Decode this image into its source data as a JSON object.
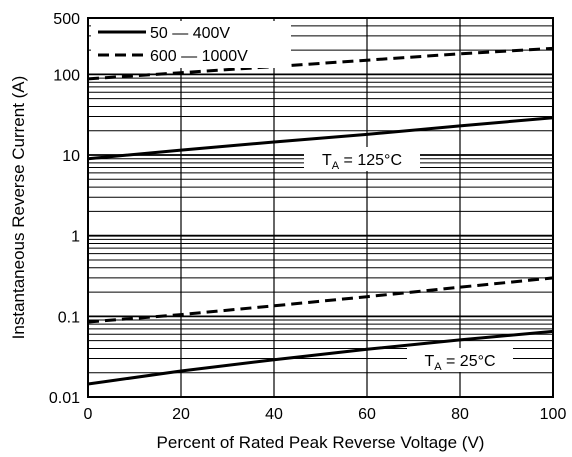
{
  "chart_data": {
    "type": "line",
    "title": "",
    "xlabel": "Percent of Rated Peak Reverse Voltage (V)",
    "ylabel": "Instantaneous Reverse Current (A)",
    "xlim": [
      0,
      100
    ],
    "ylim": [
      0.01,
      500
    ],
    "y_scale": "log",
    "grid": true,
    "legend_position": "top-left",
    "x_ticks": [
      "0",
      "20",
      "40",
      "60",
      "80",
      "100"
    ],
    "y_ticks": [
      "0.01",
      "0.1",
      "1",
      "10",
      "100",
      "500"
    ],
    "legend": [
      {
        "label": "50 — 400V",
        "style": "solid"
      },
      {
        "label": "600 — 1000V",
        "style": "dashed"
      }
    ],
    "annotations": [
      {
        "main": "T",
        "sub": "A",
        "rest": " = 125°C",
        "near": "upper curves"
      },
      {
        "main": "T",
        "sub": "A",
        "rest": " = 25°C",
        "near": "lower curves"
      }
    ],
    "series": [
      {
        "name": "50 — 400V",
        "style": "solid",
        "condition": "TA = 125°C",
        "x": [
          0,
          20,
          40,
          60,
          80,
          100
        ],
        "y": [
          9,
          11.5,
          14.5,
          18,
          23,
          29
        ]
      },
      {
        "name": "600 — 1000V",
        "style": "dashed",
        "condition": "TA = 125°C",
        "x": [
          0,
          20,
          40,
          60,
          80,
          100
        ],
        "y": [
          88,
          105,
          125,
          150,
          180,
          210
        ]
      },
      {
        "name": "600 — 1000V",
        "style": "dashed",
        "condition": "TA = 25°C",
        "x": [
          0,
          20,
          40,
          60,
          80,
          100
        ],
        "y": [
          0.085,
          0.105,
          0.135,
          0.175,
          0.23,
          0.3
        ]
      },
      {
        "name": "50 — 400V",
        "style": "solid",
        "condition": "TA = 25°C",
        "x": [
          0,
          20,
          40,
          60,
          80,
          100
        ],
        "y": [
          0.0145,
          0.021,
          0.029,
          0.039,
          0.051,
          0.065
        ]
      }
    ]
  }
}
